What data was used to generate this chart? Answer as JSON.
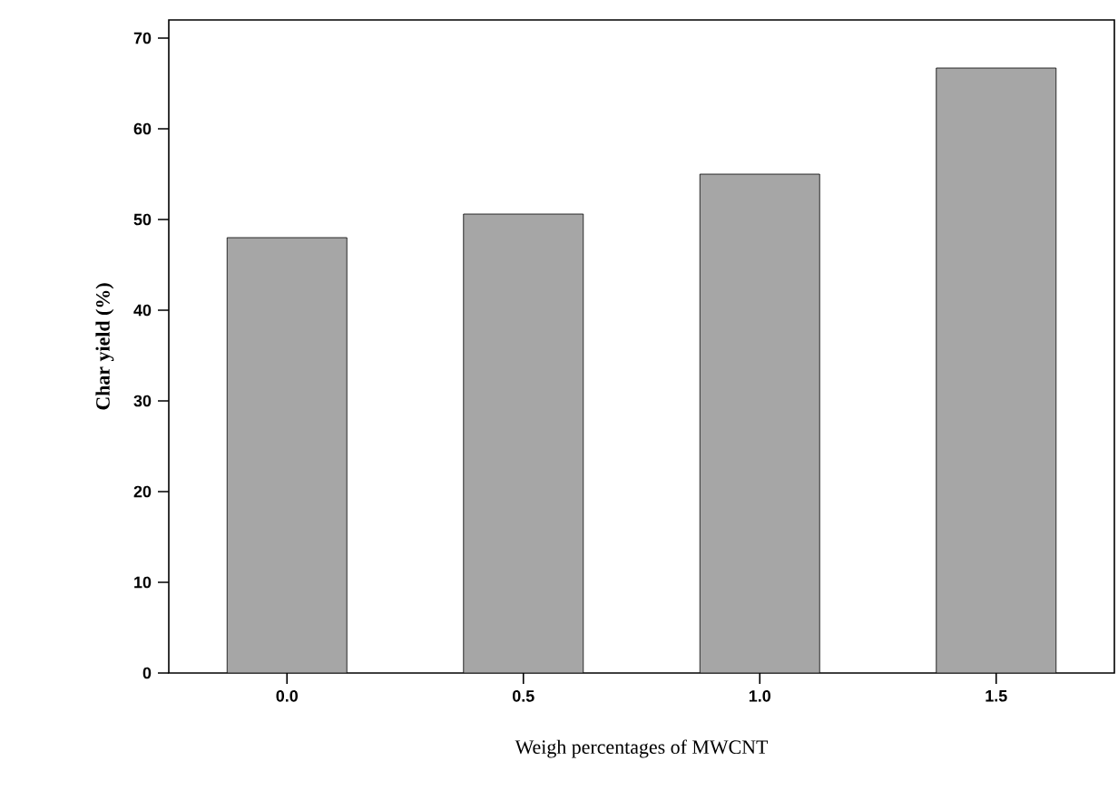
{
  "chart_data": {
    "type": "bar",
    "xlabel": "Weigh percentages of MWCNT",
    "ylabel": "Char yield (%)",
    "categories": [
      "0.0",
      "0.5",
      "1.0",
      "1.5"
    ],
    "values": [
      48.0,
      50.6,
      55.0,
      66.7
    ],
    "color": "#a6a6a6",
    "ylim": [
      0,
      72
    ],
    "yticks": [
      0,
      10,
      20,
      30,
      40,
      50,
      60,
      70
    ]
  }
}
